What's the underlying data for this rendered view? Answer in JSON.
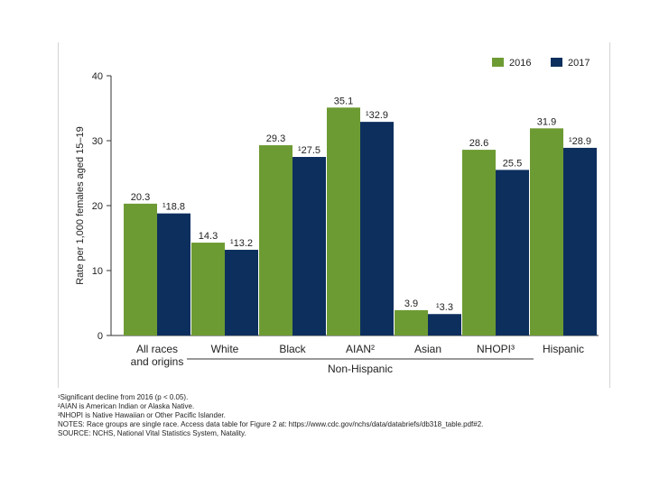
{
  "chart_data": {
    "type": "bar",
    "ylabel": "Rate per 1,000 females aged 15–19",
    "ylim": [
      0,
      40
    ],
    "yticks": [
      0,
      10,
      20,
      30,
      40
    ],
    "grid": false,
    "legend_position": "top-right",
    "categories": [
      [
        "All races",
        "and origins"
      ],
      [
        "White"
      ],
      [
        "Black"
      ],
      [
        "AIAN²"
      ],
      [
        "Asian"
      ],
      [
        "NHOPI³"
      ],
      [
        "Hispanic"
      ]
    ],
    "group_label": "Non-Hispanic",
    "series": [
      {
        "name": "2016",
        "color": "#6d9b33",
        "values": [
          20.3,
          14.3,
          29.3,
          35.1,
          3.9,
          28.6,
          31.9
        ],
        "labels": [
          "20.3",
          "14.3",
          "29.3",
          "35.1",
          "3.9",
          "28.6",
          "31.9"
        ]
      },
      {
        "name": "2017",
        "color": "#0d2f5e",
        "values": [
          18.8,
          13.2,
          27.5,
          32.9,
          3.3,
          25.5,
          28.9
        ],
        "labels": [
          "¹18.8",
          "¹13.2",
          "¹27.5",
          "¹32.9",
          "¹3.3",
          "25.5",
          "¹28.9"
        ]
      }
    ]
  },
  "notes": [
    "¹Significant decline from 2016 (p < 0.05).",
    "²AIAN is American Indian or Alaska Native.",
    "³NHOPI is Native Hawaiian or Other Pacific Islander.",
    "NOTES: Race groups are single race. Access data table for Figure 2 at: https://www.cdc.gov/nchs/data/databriefs/db318_table.pdf#2.",
    "SOURCE: NCHS, National Vital Statistics System, Natality."
  ]
}
